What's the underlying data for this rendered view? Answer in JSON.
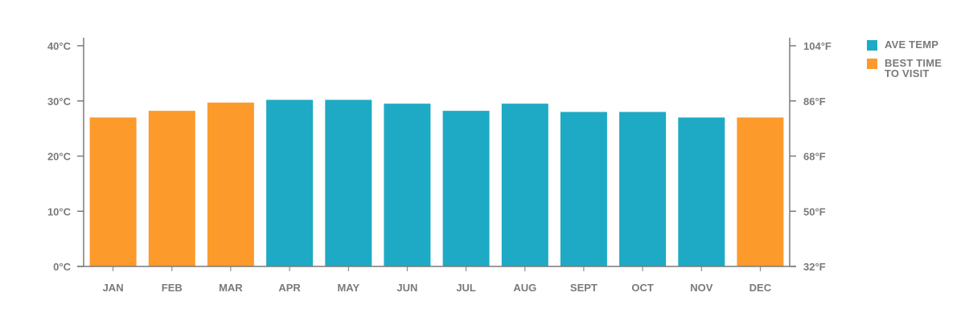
{
  "colors": {
    "ave_temp": "#1eaac4",
    "best_time": "#fd9a2c",
    "axis": "#7a7a7a"
  },
  "legend": {
    "items": [
      {
        "label": "AVE TEMP",
        "color_key": "ave_temp"
      },
      {
        "label": "BEST TIME TO VISIT",
        "color_key": "best_time"
      }
    ]
  },
  "chart_data": {
    "type": "bar",
    "categories": [
      "JAN",
      "FEB",
      "MAR",
      "APR",
      "MAY",
      "JUN",
      "JUL",
      "AUG",
      "SEPT",
      "OCT",
      "NOV",
      "DEC"
    ],
    "values": [
      27,
      28.2,
      29.7,
      30.2,
      30.2,
      29.5,
      28.2,
      29.5,
      28,
      28,
      27,
      27
    ],
    "best_time": [
      true,
      true,
      true,
      false,
      false,
      false,
      false,
      false,
      false,
      false,
      false,
      true
    ],
    "ylim": [
      0,
      40
    ],
    "yticks": [
      0,
      10,
      20,
      30,
      40
    ],
    "left_tick_labels": [
      "0°C",
      "10°C",
      "20°C",
      "30°C",
      "40°C"
    ],
    "right_tick_labels": [
      "32°F",
      "50°F",
      "68°F",
      "86°F",
      "104°F"
    ],
    "unit_left": "°C",
    "unit_right": "°F",
    "legend_position": "right",
    "grid": false
  }
}
